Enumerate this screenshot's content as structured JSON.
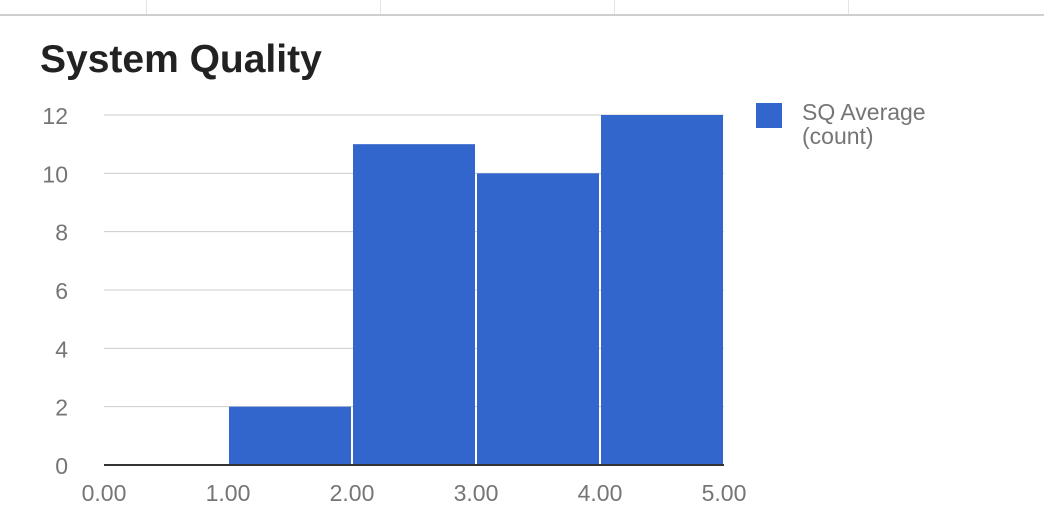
{
  "chart_data": {
    "type": "bar",
    "title": "System Quality",
    "x_ticks": [
      "0.00",
      "1.00",
      "2.00",
      "3.00",
      "4.00",
      "5.00"
    ],
    "bins": [
      {
        "from": 1.0,
        "to": 2.0,
        "count": 2
      },
      {
        "from": 2.0,
        "to": 3.0,
        "count": 11
      },
      {
        "from": 3.0,
        "to": 4.0,
        "count": 10
      },
      {
        "from": 4.0,
        "to": 5.0,
        "count": 12
      }
    ],
    "series": [
      {
        "name": "SQ Average (count)",
        "values": [
          2,
          11,
          10,
          12
        ]
      }
    ],
    "xlim": [
      0,
      5
    ],
    "ylim": [
      0,
      12
    ],
    "y_ticks": [
      0,
      2,
      4,
      6,
      8,
      10,
      12
    ],
    "xlabel": "",
    "ylabel": "",
    "grid": true,
    "legend_position": "right",
    "colors": {
      "bar": "#3366cc",
      "grid": "#cccccc",
      "axis": "#333333",
      "tick_text": "#757575"
    }
  },
  "legend": {
    "label": "SQ Average (count)"
  }
}
